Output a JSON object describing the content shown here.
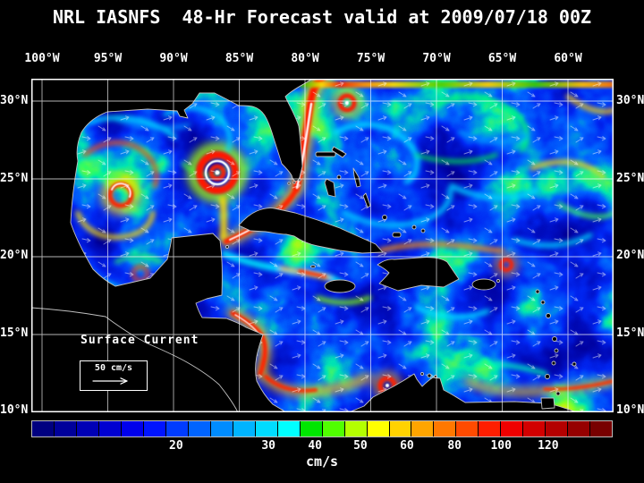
{
  "title": "NRL IASNFS  48-Hr Forecast valid at 2009/07/18 00Z",
  "map": {
    "lon_ticks": [
      "100°W",
      "95°W",
      "90°W",
      "85°W",
      "80°W",
      "75°W",
      "70°W",
      "65°W",
      "60°W"
    ],
    "lat_ticks": [
      "30°N",
      "25°N",
      "20°N",
      "15°N",
      "10°N"
    ],
    "overlay_label": "Surface Current",
    "scale_label": "50 cm/s"
  },
  "colorbar": {
    "units": "cm/s",
    "tick_labels": [
      "20",
      "30",
      "40",
      "50",
      "60",
      "80",
      "100",
      "120"
    ],
    "tick_x_pct": [
      24.9,
      40.8,
      48.8,
      56.6,
      64.6,
      72.8,
      80.8,
      88.9
    ],
    "colors": [
      "#000080",
      "#00009B",
      "#0000B6",
      "#0000D1",
      "#0000EC",
      "#0014FF",
      "#003CFF",
      "#0064FF",
      "#008CFF",
      "#00B4FF",
      "#00DCFF",
      "#00FFFF",
      "#00E600",
      "#50FF00",
      "#B4FF00",
      "#FFFF00",
      "#FFD200",
      "#FFA500",
      "#FF7800",
      "#FF4B00",
      "#FF1E00",
      "#F00000",
      "#D20000",
      "#B40000",
      "#960000",
      "#780000"
    ]
  },
  "colors": {
    "background": "#000000",
    "ocean_deep": "#000080",
    "grid": "#FFFFFF",
    "coastline": "#C0C0C0",
    "land": "#000000",
    "text": "#FFFFFF"
  }
}
